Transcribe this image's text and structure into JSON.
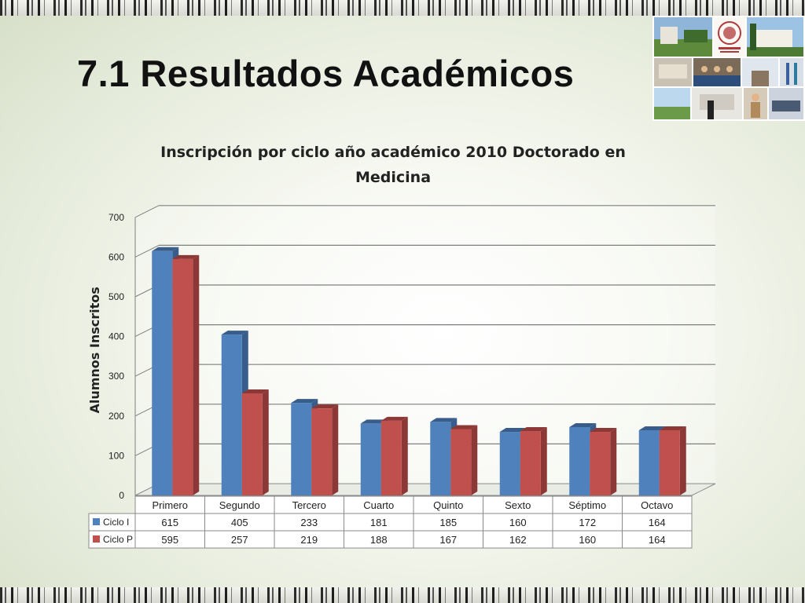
{
  "slide": {
    "title": "7.1 Resultados Académicos"
  },
  "chart_data": {
    "type": "bar",
    "title_lines": [
      "Inscripción por ciclo año académico 2010 Doctorado en",
      "Medicina"
    ],
    "ylabel": "Alumnos Inscritos",
    "xlabel": "",
    "ylim": [
      0,
      700
    ],
    "yticks": [
      0,
      100,
      200,
      300,
      400,
      500,
      600,
      700
    ],
    "grid": true,
    "categories": [
      "Primero",
      "Segundo",
      "Tercero",
      "Cuarto",
      "Quinto",
      "Sexto",
      "Séptimo",
      "Octavo"
    ],
    "series": [
      {
        "name": "Ciclo I",
        "values": [
          615,
          405,
          233,
          181,
          185,
          160,
          172,
          164
        ],
        "color": "#4f81bd",
        "dark": "#385d8a"
      },
      {
        "name": "Ciclo P",
        "values": [
          595,
          257,
          219,
          188,
          167,
          162,
          160,
          164
        ],
        "color": "#c0504d",
        "dark": "#8c3836"
      }
    ],
    "legend": "data-table"
  }
}
